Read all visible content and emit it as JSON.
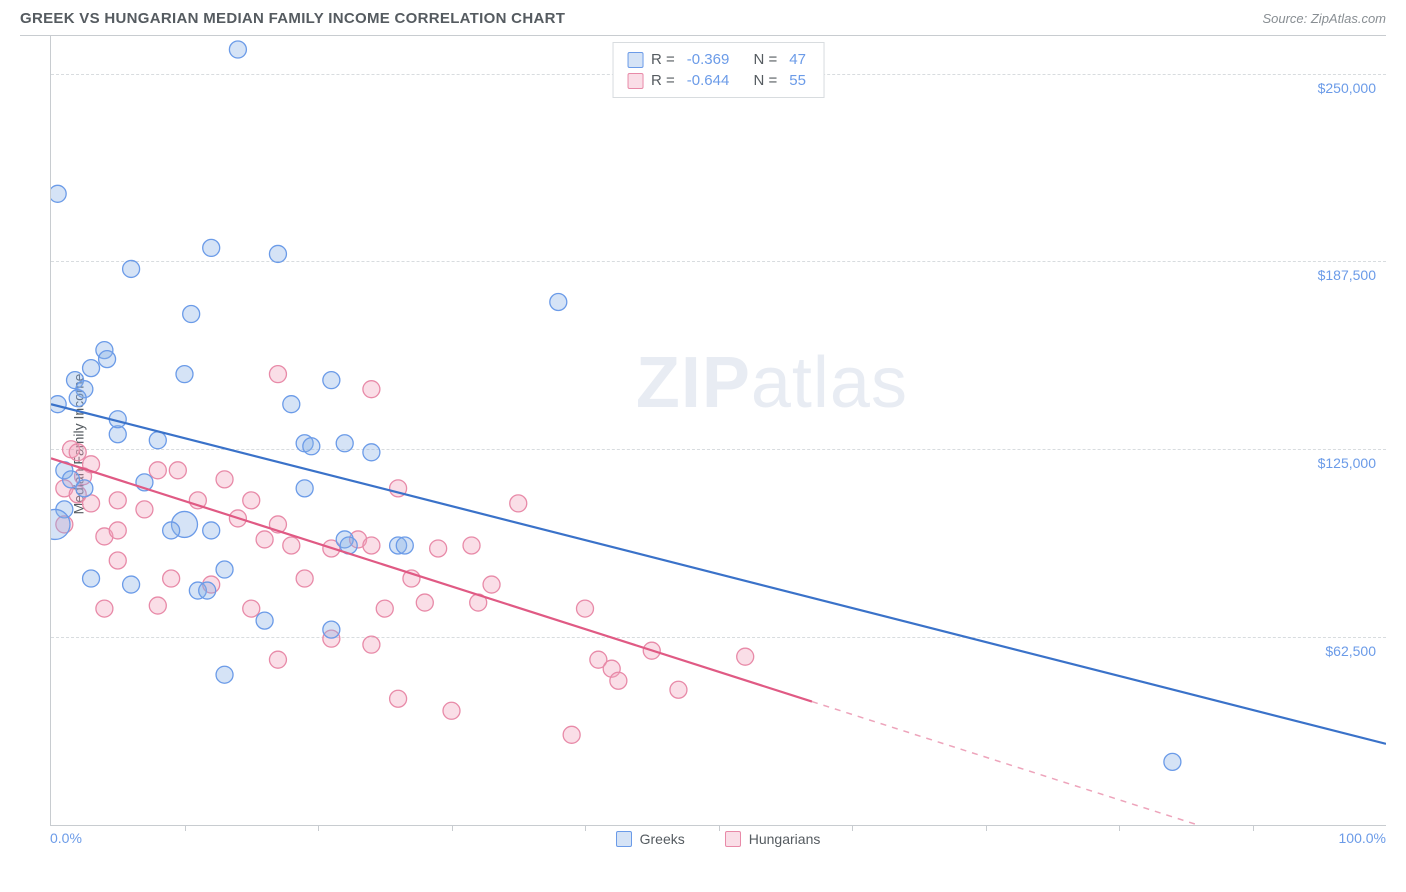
{
  "header": {
    "title": "GREEK VS HUNGARIAN MEDIAN FAMILY INCOME CORRELATION CHART",
    "source": "Source: ZipAtlas.com"
  },
  "watermark": {
    "zip": "ZIP",
    "atlas": "atlas"
  },
  "chart": {
    "type": "scatter",
    "ylabel": "Median Family Income",
    "background_color": "#ffffff",
    "grid_color": "#d8dcdf",
    "axis_color": "#c8ccd0",
    "tick_label_color": "#6b9be8",
    "label_color": "#555b60",
    "label_fontsize": 14,
    "title_fontsize": 15,
    "x_axis": {
      "min": 0,
      "max": 100,
      "min_label": "0.0%",
      "max_label": "100.0%",
      "tick_positions": [
        10,
        20,
        30,
        40,
        50,
        60,
        70,
        80,
        90
      ]
    },
    "y_axis": {
      "min": 0,
      "max": 262500,
      "gridlines": [
        62500,
        125000,
        187500,
        250000
      ],
      "grid_labels": [
        "$62,500",
        "$125,000",
        "$187,500",
        "$250,000"
      ]
    },
    "series": [
      {
        "id": "greeks",
        "label": "Greeks",
        "fill": "rgba(135,175,230,0.35)",
        "stroke": "#6b9be8",
        "line_color": "#3a72c9",
        "line_width": 2.2,
        "marker_radius": 8.5,
        "stats": {
          "r_label": "R =",
          "r_value": "-0.369",
          "n_label": "N =",
          "n_value": "47"
        },
        "trend": {
          "y_at_x0": 140000,
          "y_at_x100": 27000,
          "solid_until_x": 100
        },
        "points": [
          {
            "x": 14,
            "y": 258000
          },
          {
            "x": 0.5,
            "y": 210000
          },
          {
            "x": 12,
            "y": 192000
          },
          {
            "x": 17,
            "y": 190000
          },
          {
            "x": 6,
            "y": 185000
          },
          {
            "x": 38,
            "y": 174000
          },
          {
            "x": 10.5,
            "y": 170000
          },
          {
            "x": 4,
            "y": 158000
          },
          {
            "x": 4.2,
            "y": 155000
          },
          {
            "x": 3,
            "y": 152000
          },
          {
            "x": 10,
            "y": 150000
          },
          {
            "x": 1.8,
            "y": 148000
          },
          {
            "x": 2.5,
            "y": 145000
          },
          {
            "x": 2,
            "y": 142000
          },
          {
            "x": 0.5,
            "y": 140000
          },
          {
            "x": 21,
            "y": 148000
          },
          {
            "x": 18,
            "y": 140000
          },
          {
            "x": 5,
            "y": 130000
          },
          {
            "x": 8,
            "y": 128000
          },
          {
            "x": 19,
            "y": 127000
          },
          {
            "x": 19.5,
            "y": 126000
          },
          {
            "x": 22,
            "y": 127000
          },
          {
            "x": 24,
            "y": 124000
          },
          {
            "x": 1,
            "y": 118000
          },
          {
            "x": 1.5,
            "y": 115000
          },
          {
            "x": 2.5,
            "y": 112000
          },
          {
            "x": 7,
            "y": 114000
          },
          {
            "x": 19,
            "y": 112000
          },
          {
            "x": 1,
            "y": 105000
          },
          {
            "x": 10,
            "y": 100000,
            "r": 13
          },
          {
            "x": 0.3,
            "y": 100000,
            "r": 15
          },
          {
            "x": 9,
            "y": 98000
          },
          {
            "x": 12,
            "y": 98000
          },
          {
            "x": 22,
            "y": 95000
          },
          {
            "x": 22.3,
            "y": 93000
          },
          {
            "x": 26,
            "y": 93000
          },
          {
            "x": 26.5,
            "y": 93000
          },
          {
            "x": 13,
            "y": 85000
          },
          {
            "x": 3,
            "y": 82000
          },
          {
            "x": 6,
            "y": 80000
          },
          {
            "x": 11,
            "y": 78000
          },
          {
            "x": 11.7,
            "y": 78000
          },
          {
            "x": 16,
            "y": 68000
          },
          {
            "x": 21,
            "y": 65000
          },
          {
            "x": 13,
            "y": 50000
          },
          {
            "x": 84,
            "y": 21000
          },
          {
            "x": 5,
            "y": 135000
          }
        ]
      },
      {
        "id": "hungarians",
        "label": "Hungarians",
        "fill": "rgba(240,160,185,0.35)",
        "stroke": "#e88aa8",
        "line_color": "#e05a84",
        "line_width": 2.2,
        "marker_radius": 8.5,
        "stats": {
          "r_label": "R =",
          "r_value": "-0.644",
          "n_label": "N =",
          "n_value": "55"
        },
        "trend": {
          "y_at_x0": 122000,
          "y_at_x100": -20000,
          "solid_until_x": 57
        },
        "points": [
          {
            "x": 17,
            "y": 150000
          },
          {
            "x": 24,
            "y": 145000
          },
          {
            "x": 1.5,
            "y": 125000
          },
          {
            "x": 2,
            "y": 124000
          },
          {
            "x": 3,
            "y": 120000
          },
          {
            "x": 2.4,
            "y": 116000
          },
          {
            "x": 8,
            "y": 118000
          },
          {
            "x": 9.5,
            "y": 118000
          },
          {
            "x": 13,
            "y": 115000
          },
          {
            "x": 1,
            "y": 112000
          },
          {
            "x": 2,
            "y": 110000
          },
          {
            "x": 3,
            "y": 107000
          },
          {
            "x": 5,
            "y": 108000
          },
          {
            "x": 7,
            "y": 105000
          },
          {
            "x": 11,
            "y": 108000
          },
          {
            "x": 15,
            "y": 108000
          },
          {
            "x": 26,
            "y": 112000
          },
          {
            "x": 35,
            "y": 107000
          },
          {
            "x": 14,
            "y": 102000
          },
          {
            "x": 1,
            "y": 100000
          },
          {
            "x": 4,
            "y": 96000
          },
          {
            "x": 5,
            "y": 98000
          },
          {
            "x": 16,
            "y": 95000
          },
          {
            "x": 17,
            "y": 100000
          },
          {
            "x": 18,
            "y": 93000
          },
          {
            "x": 21,
            "y": 92000
          },
          {
            "x": 23,
            "y": 95000
          },
          {
            "x": 24,
            "y": 93000
          },
          {
            "x": 29,
            "y": 92000
          },
          {
            "x": 31.5,
            "y": 93000
          },
          {
            "x": 5,
            "y": 88000
          },
          {
            "x": 9,
            "y": 82000
          },
          {
            "x": 12,
            "y": 80000
          },
          {
            "x": 19,
            "y": 82000
          },
          {
            "x": 27,
            "y": 82000
          },
          {
            "x": 33,
            "y": 80000
          },
          {
            "x": 4,
            "y": 72000
          },
          {
            "x": 8,
            "y": 73000
          },
          {
            "x": 15,
            "y": 72000
          },
          {
            "x": 25,
            "y": 72000
          },
          {
            "x": 28,
            "y": 74000
          },
          {
            "x": 32,
            "y": 74000
          },
          {
            "x": 40,
            "y": 72000
          },
          {
            "x": 21,
            "y": 62000
          },
          {
            "x": 24,
            "y": 60000
          },
          {
            "x": 41,
            "y": 55000
          },
          {
            "x": 42,
            "y": 52000
          },
          {
            "x": 42.5,
            "y": 48000
          },
          {
            "x": 45,
            "y": 58000
          },
          {
            "x": 52,
            "y": 56000
          },
          {
            "x": 47,
            "y": 45000
          },
          {
            "x": 26,
            "y": 42000
          },
          {
            "x": 30,
            "y": 38000
          },
          {
            "x": 17,
            "y": 55000
          },
          {
            "x": 39,
            "y": 30000
          }
        ]
      }
    ]
  }
}
